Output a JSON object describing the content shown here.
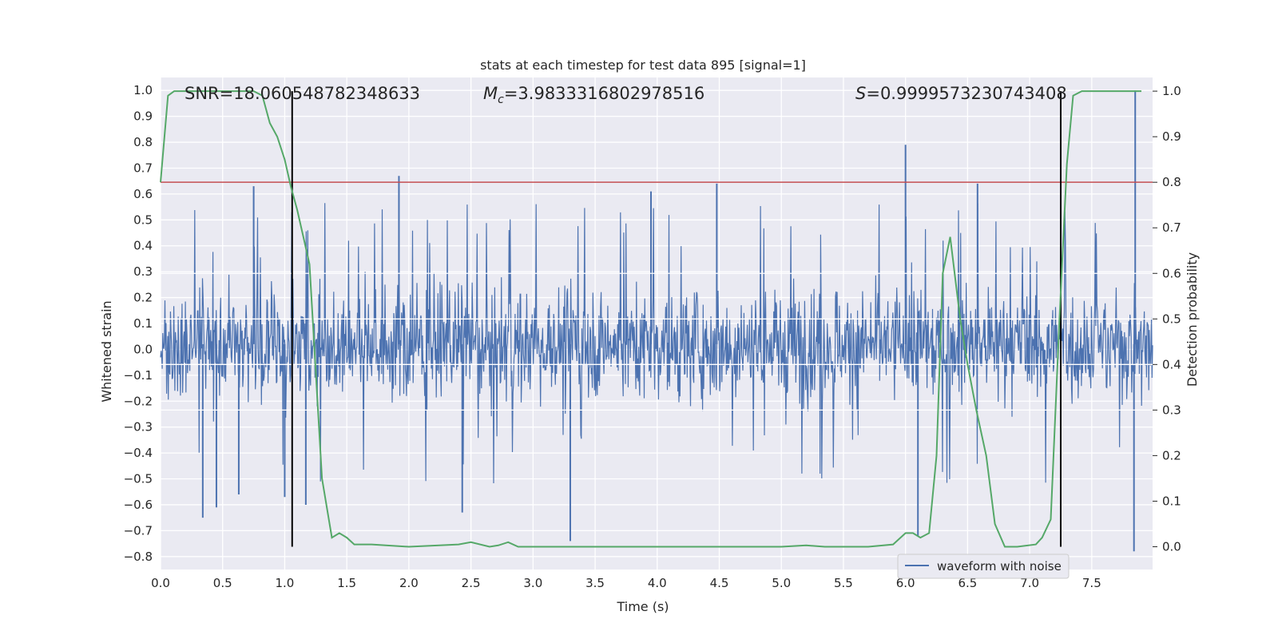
{
  "chart_data": {
    "type": "line",
    "title": "stats at each timestep for test data 895 [signal=1]",
    "xlabel": "Time (s)",
    "ylabel_left": "Whitened strain",
    "ylabel_right": "Detection probability",
    "xlim": [
      0.0,
      7.99
    ],
    "ylim_left": [
      -0.85,
      1.05
    ],
    "ylim_right": [
      -0.05,
      1.03
    ],
    "xticks": [
      0.0,
      0.5,
      1.0,
      1.5,
      2.0,
      2.5,
      3.0,
      3.5,
      4.0,
      4.5,
      5.0,
      5.5,
      6.0,
      6.5,
      7.0,
      7.5
    ],
    "yticks_left": [
      -0.8,
      -0.7,
      -0.6,
      -0.5,
      -0.4,
      -0.3,
      -0.2,
      -0.1,
      0.0,
      0.1,
      0.2,
      0.3,
      0.4,
      0.5,
      0.6,
      0.7,
      0.8,
      0.9,
      1.0
    ],
    "yticks_right": [
      0.0,
      0.1,
      0.2,
      0.3,
      0.4,
      0.5,
      0.6,
      0.7,
      0.8,
      0.9,
      1.0
    ],
    "grid": true,
    "legend": {
      "label": "waveform with noise",
      "placement": "lower-right"
    },
    "annotations": {
      "snr": "SNR=18.060548782348633",
      "mc_symbol": "M",
      "mc_subscript": "c",
      "mc_value": "=3.9833316802978516",
      "s_symbol": "S",
      "s_value": "=0.9999573230743408"
    },
    "waveform": {
      "name": "waveform with noise",
      "color": "#4c72b0",
      "typical_envelope": [
        -0.25,
        0.29
      ],
      "peaks": [
        {
          "t": 0.34,
          "v": -0.65
        },
        {
          "t": 0.45,
          "v": -0.61
        },
        {
          "t": 0.63,
          "v": -0.56
        },
        {
          "t": 0.75,
          "v": 0.63
        },
        {
          "t": 1.0,
          "v": -0.57
        },
        {
          "t": 1.17,
          "v": -0.6
        },
        {
          "t": 1.92,
          "v": 0.67
        },
        {
          "t": 2.43,
          "v": -0.63
        },
        {
          "t": 3.3,
          "v": -0.74
        },
        {
          "t": 3.95,
          "v": 0.61
        },
        {
          "t": 4.48,
          "v": 0.64
        },
        {
          "t": 6.0,
          "v": 0.79
        },
        {
          "t": 6.1,
          "v": -0.72
        },
        {
          "t": 6.58,
          "v": 0.64
        },
        {
          "t": 7.85,
          "v": 1.0
        },
        {
          "t": 7.84,
          "v": -0.78
        }
      ]
    },
    "detection_probability": {
      "name": "Detection probability",
      "color": "#55a868",
      "t": [
        0.0,
        0.06,
        0.11,
        0.2,
        0.4,
        0.6,
        0.75,
        0.82,
        0.88,
        0.94,
        1.0,
        1.05,
        1.1,
        1.15,
        1.2,
        1.3,
        1.38,
        1.44,
        1.5,
        1.56,
        1.7,
        2.0,
        2.4,
        2.5,
        2.65,
        2.72,
        2.8,
        2.88,
        3.1,
        4.0,
        5.0,
        5.2,
        5.35,
        5.5,
        5.7,
        5.9,
        6.0,
        6.06,
        6.12,
        6.19,
        6.25,
        6.3,
        6.36,
        6.44,
        6.5,
        6.57,
        6.65,
        6.72,
        6.8,
        6.9,
        7.05,
        7.1,
        7.17,
        7.24,
        7.3,
        7.35,
        7.42,
        7.55,
        7.9
      ],
      "p": [
        0.8,
        0.99,
        1.0,
        1.0,
        1.0,
        1.0,
        1.0,
        0.99,
        0.93,
        0.9,
        0.85,
        0.79,
        0.74,
        0.68,
        0.62,
        0.15,
        0.02,
        0.03,
        0.02,
        0.005,
        0.005,
        0.0,
        0.005,
        0.01,
        0.0,
        0.003,
        0.01,
        0.0,
        0.0,
        0.0,
        0.0,
        0.003,
        0.0,
        0.0,
        0.0,
        0.005,
        0.03,
        0.03,
        0.02,
        0.03,
        0.2,
        0.6,
        0.68,
        0.5,
        0.4,
        0.3,
        0.2,
        0.05,
        0.0,
        0.0,
        0.005,
        0.02,
        0.06,
        0.5,
        0.84,
        0.99,
        1.0,
        1.0,
        1.0
      ]
    },
    "threshold": {
      "value": 0.8,
      "color": "#c44e52"
    },
    "event_lines": [
      1.06,
      7.25
    ]
  }
}
